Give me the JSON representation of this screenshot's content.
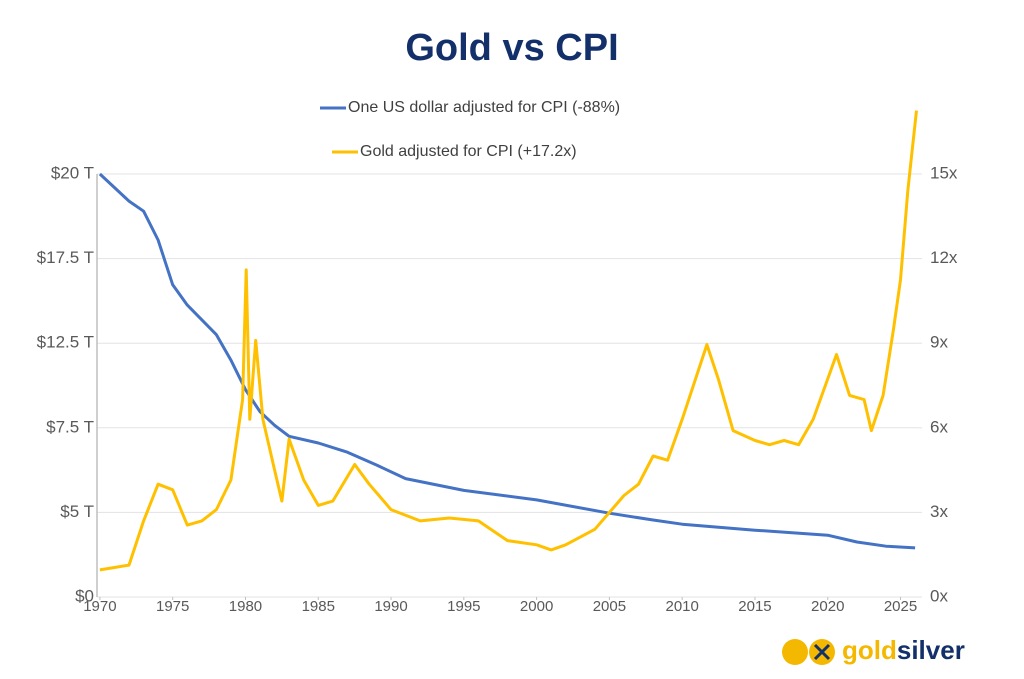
{
  "chart_data": {
    "type": "line",
    "title": "Gold vs CPI",
    "xlim": [
      1969.8,
      2026.2
    ],
    "xticks": [
      1970,
      1975,
      1980,
      1985,
      1990,
      1995,
      2000,
      2005,
      2010,
      2015,
      2020,
      2025
    ],
    "ylim": [
      0,
      20
    ],
    "yticks": [
      {
        "value": 0,
        "label": "$0"
      },
      {
        "value": 5,
        "label": "$5 T"
      },
      {
        "value": 7.5,
        "label": "$7.5 T"
      },
      {
        "value": 12.5,
        "label": "$12.5 T"
      },
      {
        "value": 17.5,
        "label": "$17.5 T"
      },
      {
        "value": 20,
        "label": "$20 T"
      }
    ],
    "y2lim": [
      0,
      15
    ],
    "y2ticks": [
      {
        "value": 0,
        "label": "0x"
      },
      {
        "value": 3,
        "label": "3x"
      },
      {
        "value": 6,
        "label": "6x"
      },
      {
        "value": 9,
        "label": "9x"
      },
      {
        "value": 12,
        "label": "12x"
      },
      {
        "value": 15,
        "label": "15x"
      }
    ],
    "grid": true,
    "legend": "top",
    "series": [
      {
        "name": "One US dollar adjusted for CPI (-88%)",
        "color": "#4472c4",
        "x": [
          1970,
          1972,
          1973,
          1974,
          1975,
          1976,
          1978,
          1979,
          1980,
          1981,
          1982,
          1983,
          1985,
          1987,
          1989,
          1991,
          1995,
          2000,
          2005,
          2008,
          2010,
          2015,
          2020,
          2022,
          2024,
          2026
        ],
        "values": [
          20,
          19.2,
          18.9,
          18.05,
          15.95,
          14.75,
          13.0,
          11.5,
          9.75,
          8.45,
          7.65,
          7.25,
          7.05,
          6.78,
          6.4,
          6.0,
          5.65,
          5.37,
          4.95,
          4.55,
          4.3,
          3.95,
          3.65,
          3.25,
          3.0,
          2.9
        ]
      },
      {
        "name": "Gold adjusted for CPI (+17.2x)",
        "color": "#ffc000",
        "axis": "y2",
        "x": [
          1970,
          1972,
          1973,
          1974,
          1975,
          1976,
          1977,
          1978,
          1979,
          1979.8,
          1980.05,
          1980.3,
          1980.7,
          1981.2,
          1982,
          1982.5,
          1983,
          1984,
          1985,
          1986,
          1987.5,
          1988.5,
          1990,
          1992,
          1994,
          1996,
          1998,
          2000,
          2001,
          2002,
          2004,
          2006,
          2007,
          2008,
          2009,
          2010,
          2011.7,
          2012.5,
          2013.5,
          2015,
          2016,
          2017,
          2018,
          2019,
          2020.6,
          2021.5,
          2022.5,
          2023,
          2023.8,
          2024.5,
          2025,
          2025.5,
          2025.8,
          2026.1
        ],
        "values": [
          0.96,
          1.13,
          2.7,
          4.0,
          3.8,
          2.55,
          2.7,
          3.1,
          4.15,
          7.0,
          11.6,
          6.3,
          9.1,
          6.3,
          4.5,
          3.4,
          5.6,
          4.15,
          3.25,
          3.4,
          4.7,
          4.0,
          3.1,
          2.7,
          2.8,
          2.7,
          2.0,
          1.85,
          1.67,
          1.85,
          2.4,
          3.6,
          4.0,
          5.0,
          4.85,
          6.3,
          8.95,
          7.7,
          5.9,
          5.55,
          5.4,
          5.55,
          5.4,
          6.3,
          8.6,
          7.15,
          7.0,
          5.9,
          7.15,
          9.45,
          11.25,
          14.4,
          15.85,
          17.25
        ]
      }
    ]
  },
  "logo": {
    "gold": "gold",
    "silver": "silver"
  }
}
